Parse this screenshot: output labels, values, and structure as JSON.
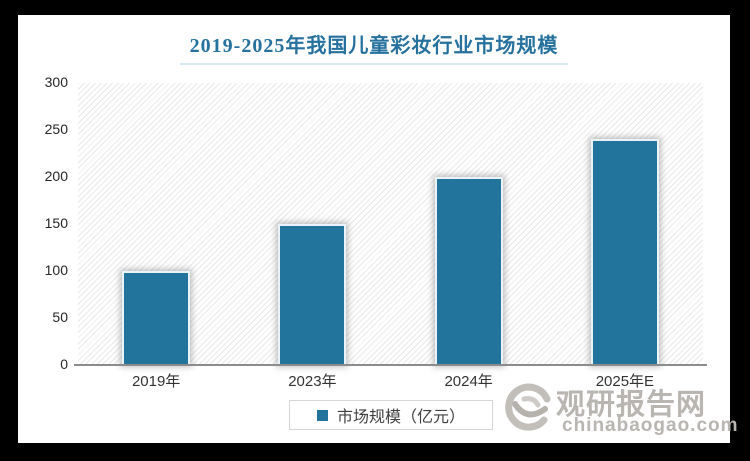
{
  "frame": {
    "background_color": "#000000",
    "card_color": "#ffffff"
  },
  "title": {
    "text": "2019-2025年我国儿童彩妆行业市场规模",
    "color": "#26719e"
  },
  "chart_data": {
    "type": "bar",
    "title": "2019-2025年我国儿童彩妆行业市场规模",
    "categories": [
      "2019年",
      "2023年",
      "2024年",
      "2025年E"
    ],
    "values": [
      100,
      150,
      200,
      240
    ],
    "series_name": "市场规模（亿元）",
    "xlabel": "",
    "ylabel": "",
    "ylim": [
      0,
      300
    ],
    "yticks": [
      0,
      50,
      100,
      150,
      200,
      250,
      300
    ],
    "grid": false,
    "legend_position": "bottom",
    "bar_color": "#22749c",
    "plot_background": "light-diagonal-hatch"
  },
  "legend": {
    "label": "市场规模（亿元）",
    "swatch_color": "#22749c"
  },
  "watermark": {
    "site_name": "观研报告网",
    "site_domain": "chinabaogao.com",
    "color": "#b9b5b1"
  }
}
